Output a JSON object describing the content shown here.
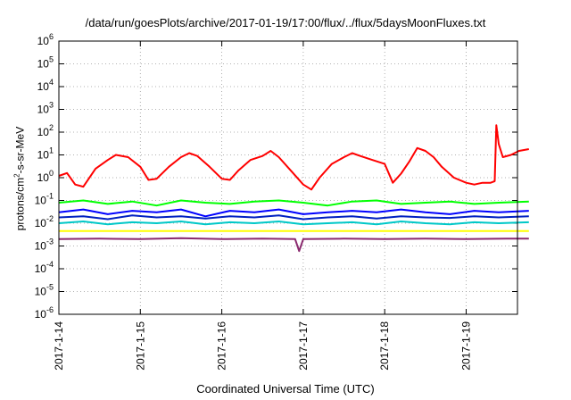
{
  "chart_data": {
    "type": "line",
    "title": "/data/run/goesPlots/archive/2017-01-19/17:00/flux/../flux/5daysMoonFluxes.txt",
    "xlabel": "Coordinated Universal Time (UTC)",
    "ylabel_prefix": "protons/cm",
    "ylabel_sup": "2",
    "ylabel_suffix": "-s-sr-MeV",
    "y_scale": "log",
    "ylim": [
      1e-06,
      1000000.0
    ],
    "y_ticks": [
      {
        "exp": "-6"
      },
      {
        "exp": "-5"
      },
      {
        "exp": "-4"
      },
      {
        "exp": "-3"
      },
      {
        "exp": "-2"
      },
      {
        "exp": "-1"
      },
      {
        "exp": "0"
      },
      {
        "exp": "1"
      },
      {
        "exp": "2"
      },
      {
        "exp": "3"
      },
      {
        "exp": "4"
      },
      {
        "exp": "5"
      },
      {
        "exp": "6"
      }
    ],
    "x_ticks": [
      "2017-1-14",
      "2017-1-15",
      "2017-1-16",
      "2017-1-17",
      "2017-1-18",
      "2017-1-19"
    ],
    "x_range_days": [
      0,
      5.77
    ],
    "grid": true,
    "colors": {
      "red": "#ff0000",
      "green": "#00ff00",
      "blue": "#0000ff",
      "darkblue": "#0020c0",
      "cyan": "#00c8c8",
      "yellow": "#ffff00",
      "purple": "#8b2a6f"
    },
    "series": [
      {
        "color": "#ff0000",
        "x": [
          0,
          0.1,
          0.2,
          0.3,
          0.45,
          0.6,
          0.7,
          0.85,
          1.0,
          1.1,
          1.2,
          1.35,
          1.5,
          1.6,
          1.7,
          1.85,
          2.0,
          2.1,
          2.2,
          2.35,
          2.5,
          2.6,
          2.7,
          2.85,
          3.0,
          3.1,
          3.2,
          3.35,
          3.5,
          3.6,
          3.7,
          3.85,
          4.0,
          4.1,
          4.2,
          4.3,
          4.4,
          4.5,
          4.6,
          4.7,
          4.85,
          5.0,
          5.1,
          5.2,
          5.3,
          5.35,
          5.37,
          5.4,
          5.45,
          5.55,
          5.65,
          5.77
        ],
        "y": [
          1.2,
          1.6,
          0.5,
          0.4,
          2.5,
          6,
          10,
          8,
          3,
          0.8,
          0.9,
          3,
          8,
          12,
          9,
          3,
          0.9,
          0.8,
          2,
          6,
          9,
          15,
          8,
          2,
          0.5,
          0.3,
          1,
          4,
          8,
          12,
          9,
          6,
          4,
          0.6,
          1.5,
          5,
          20,
          15,
          8,
          3,
          1,
          0.6,
          0.5,
          0.6,
          0.6,
          0.7,
          200,
          30,
          8,
          10,
          15,
          18
        ]
      },
      {
        "color": "#00ff00",
        "x": [
          0,
          0.3,
          0.6,
          0.9,
          1.2,
          1.5,
          1.8,
          2.1,
          2.4,
          2.7,
          3.0,
          3.3,
          3.6,
          3.9,
          4.2,
          4.5,
          4.8,
          5.1,
          5.4,
          5.77
        ],
        "y": [
          0.08,
          0.1,
          0.07,
          0.09,
          0.06,
          0.1,
          0.08,
          0.07,
          0.09,
          0.1,
          0.08,
          0.06,
          0.09,
          0.1,
          0.07,
          0.08,
          0.09,
          0.07,
          0.08,
          0.09
        ]
      },
      {
        "color": "#0000ff",
        "x": [
          0,
          0.3,
          0.6,
          0.9,
          1.2,
          1.5,
          1.8,
          2.1,
          2.4,
          2.7,
          3.0,
          3.3,
          3.6,
          3.9,
          4.2,
          4.5,
          4.8,
          5.1,
          5.4,
          5.77
        ],
        "y": [
          0.03,
          0.04,
          0.025,
          0.035,
          0.03,
          0.04,
          0.02,
          0.035,
          0.03,
          0.04,
          0.025,
          0.03,
          0.035,
          0.03,
          0.04,
          0.03,
          0.025,
          0.035,
          0.03,
          0.035
        ]
      },
      {
        "color": "#0020c0",
        "x": [
          0,
          0.3,
          0.6,
          0.9,
          1.2,
          1.5,
          1.8,
          2.1,
          2.4,
          2.7,
          3.0,
          3.3,
          3.6,
          3.9,
          4.2,
          4.5,
          4.8,
          5.1,
          5.4,
          5.77
        ],
        "y": [
          0.018,
          0.02,
          0.015,
          0.022,
          0.018,
          0.02,
          0.016,
          0.02,
          0.018,
          0.022,
          0.015,
          0.018,
          0.02,
          0.016,
          0.02,
          0.018,
          0.017,
          0.02,
          0.018,
          0.02
        ]
      },
      {
        "color": "#00c8c8",
        "x": [
          0,
          0.3,
          0.6,
          0.9,
          1.2,
          1.5,
          1.8,
          2.1,
          2.4,
          2.7,
          3.0,
          3.3,
          3.6,
          3.9,
          4.2,
          4.5,
          4.8,
          5.1,
          5.4,
          5.77
        ],
        "y": [
          0.01,
          0.012,
          0.009,
          0.011,
          0.01,
          0.012,
          0.009,
          0.011,
          0.01,
          0.012,
          0.009,
          0.01,
          0.011,
          0.009,
          0.012,
          0.01,
          0.009,
          0.011,
          0.01,
          0.011
        ]
      },
      {
        "color": "#ffff00",
        "x": [
          0,
          0.5,
          1.0,
          1.5,
          2.0,
          2.5,
          3.0,
          3.5,
          4.0,
          4.5,
          5.0,
          5.5,
          5.77
        ],
        "y": [
          0.0045,
          0.0045,
          0.0045,
          0.0045,
          0.0045,
          0.0045,
          0.0045,
          0.0045,
          0.0045,
          0.0045,
          0.0045,
          0.0045,
          0.0045
        ]
      },
      {
        "color": "#8b2a6f",
        "x": [
          0,
          0.5,
          1.0,
          1.5,
          2.0,
          2.5,
          2.9,
          2.95,
          3.0,
          3.5,
          4.0,
          4.5,
          5.0,
          5.5,
          5.77
        ],
        "y": [
          0.002,
          0.0021,
          0.002,
          0.0022,
          0.002,
          0.0021,
          0.002,
          0.0006,
          0.002,
          0.0021,
          0.002,
          0.0021,
          0.002,
          0.0021,
          0.0021
        ]
      }
    ]
  }
}
